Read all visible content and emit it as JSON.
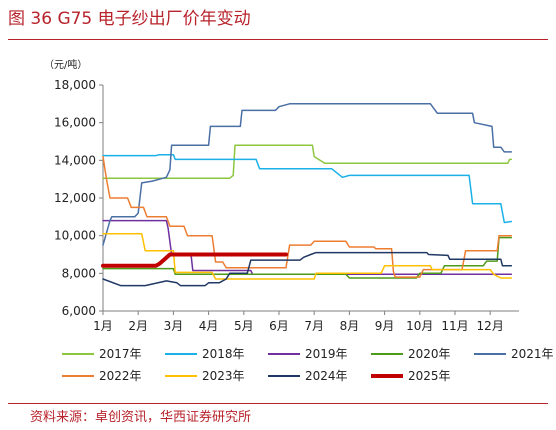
{
  "figure_title": "图 36 G75 电子纱出厂价年变动",
  "source": "资料来源：卓创资讯，华西证券研究所",
  "chart_data": {
    "type": "line",
    "unit_label": "（元/吨）",
    "x_tick_labels": [
      "1月",
      "2月",
      "3月",
      "4月",
      "5月",
      "6月",
      "7月",
      "8月",
      "9月",
      "10月",
      "11月",
      "12月"
    ],
    "x_range": [
      1,
      12.6
    ],
    "ylim": [
      6000,
      18000
    ],
    "y_ticks": [
      6000,
      8000,
      10000,
      12000,
      14000,
      16000,
      18000
    ],
    "y_tick_labels": [
      "6,000",
      "8,000",
      "10,000",
      "12,000",
      "14,000",
      "16,000",
      "18,000"
    ],
    "grid": false,
    "legend_position": "bottom",
    "series": [
      {
        "name": "2017年",
        "color": "#8cc63f",
        "width": 1.5,
        "points": [
          [
            1,
            13050
          ],
          [
            4.6,
            13050
          ],
          [
            4.7,
            13200
          ],
          [
            4.75,
            14800
          ],
          [
            6.95,
            14800
          ],
          [
            7.0,
            14200
          ],
          [
            7.3,
            13850
          ],
          [
            12.5,
            13850
          ],
          [
            12.55,
            14050
          ],
          [
            12.6,
            14050
          ]
        ]
      },
      {
        "name": "2018年",
        "color": "#1ab0e8",
        "width": 1.5,
        "points": [
          [
            1,
            14250
          ],
          [
            2.5,
            14250
          ],
          [
            2.6,
            14300
          ],
          [
            3.0,
            14300
          ],
          [
            3.05,
            14050
          ],
          [
            5.35,
            14050
          ],
          [
            5.45,
            13550
          ],
          [
            7.5,
            13550
          ],
          [
            7.8,
            13100
          ],
          [
            8.0,
            13200
          ],
          [
            11.4,
            13200
          ],
          [
            11.5,
            11700
          ],
          [
            12.3,
            11700
          ],
          [
            12.4,
            10700
          ],
          [
            12.6,
            10750
          ]
        ]
      },
      {
        "name": "2019年",
        "color": "#7030a0",
        "width": 1.5,
        "points": [
          [
            1,
            10800
          ],
          [
            2.8,
            10800
          ],
          [
            2.85,
            10400
          ],
          [
            2.95,
            9000
          ],
          [
            3.5,
            9000
          ],
          [
            3.55,
            8150
          ],
          [
            5.2,
            8150
          ],
          [
            5.25,
            7950
          ],
          [
            12.6,
            7950
          ]
        ]
      },
      {
        "name": "2020年",
        "color": "#4e9a1a",
        "width": 1.5,
        "points": [
          [
            1,
            8250
          ],
          [
            3.0,
            8250
          ],
          [
            3.05,
            7950
          ],
          [
            7.9,
            7950
          ],
          [
            8.0,
            7750
          ],
          [
            9.9,
            7750
          ],
          [
            10.0,
            8000
          ],
          [
            10.6,
            8000
          ],
          [
            10.7,
            8400
          ],
          [
            11.8,
            8400
          ],
          [
            11.9,
            8650
          ],
          [
            12.2,
            8650
          ],
          [
            12.25,
            9900
          ],
          [
            12.6,
            9900
          ]
        ]
      },
      {
        "name": "2021年",
        "color": "#4a6fa5",
        "width": 1.5,
        "points": [
          [
            1,
            9500
          ],
          [
            1.2,
            10800
          ],
          [
            1.25,
            11000
          ],
          [
            1.9,
            11000
          ],
          [
            2.0,
            11200
          ],
          [
            2.1,
            12800
          ],
          [
            2.4,
            12900
          ],
          [
            2.8,
            13100
          ],
          [
            2.9,
            13500
          ],
          [
            2.95,
            14800
          ],
          [
            4.0,
            14800
          ],
          [
            4.05,
            15800
          ],
          [
            4.9,
            15800
          ],
          [
            4.95,
            16650
          ],
          [
            5.9,
            16650
          ],
          [
            6.0,
            16850
          ],
          [
            6.3,
            17000
          ],
          [
            10.3,
            17000
          ],
          [
            10.5,
            16500
          ],
          [
            11.5,
            16500
          ],
          [
            11.55,
            16000
          ],
          [
            12.05,
            15800
          ],
          [
            12.1,
            14700
          ],
          [
            12.3,
            14700
          ],
          [
            12.4,
            14450
          ],
          [
            12.6,
            14450
          ]
        ]
      },
      {
        "name": "2022年",
        "color": "#ed7d31",
        "width": 1.5,
        "points": [
          [
            1,
            14200
          ],
          [
            1.1,
            13000
          ],
          [
            1.2,
            12000
          ],
          [
            1.7,
            12000
          ],
          [
            1.8,
            11500
          ],
          [
            2.15,
            11500
          ],
          [
            2.25,
            11000
          ],
          [
            2.8,
            11000
          ],
          [
            2.9,
            10500
          ],
          [
            3.3,
            10500
          ],
          [
            3.4,
            10000
          ],
          [
            4.1,
            10000
          ],
          [
            4.2,
            8600
          ],
          [
            4.4,
            8600
          ],
          [
            4.5,
            8300
          ],
          [
            6.2,
            8300
          ],
          [
            6.3,
            9500
          ],
          [
            6.9,
            9500
          ],
          [
            7.0,
            9700
          ],
          [
            7.9,
            9700
          ],
          [
            8.0,
            9400
          ],
          [
            8.7,
            9400
          ],
          [
            8.75,
            9300
          ],
          [
            9.2,
            9300
          ],
          [
            9.25,
            8100
          ],
          [
            9.3,
            7800
          ],
          [
            10.0,
            7800
          ],
          [
            10.1,
            8200
          ],
          [
            11.2,
            8200
          ],
          [
            11.3,
            9200
          ],
          [
            12.2,
            9200
          ],
          [
            12.25,
            10000
          ],
          [
            12.6,
            10000
          ]
        ]
      },
      {
        "name": "2023年",
        "color": "#ffc000",
        "width": 1.5,
        "points": [
          [
            1,
            10100
          ],
          [
            2.1,
            10100
          ],
          [
            2.2,
            9200
          ],
          [
            3.0,
            9200
          ],
          [
            3.05,
            8050
          ],
          [
            4.1,
            8050
          ],
          [
            4.2,
            7700
          ],
          [
            7.0,
            7700
          ],
          [
            7.05,
            8000
          ],
          [
            8.9,
            8000
          ],
          [
            9.0,
            8400
          ],
          [
            10.3,
            8400
          ],
          [
            10.35,
            8200
          ],
          [
            12.0,
            8200
          ],
          [
            12.1,
            7950
          ],
          [
            12.3,
            7750
          ],
          [
            12.6,
            7750
          ]
        ]
      },
      {
        "name": "2024年",
        "color": "#1f3864",
        "width": 1.5,
        "points": [
          [
            1,
            7700
          ],
          [
            1.5,
            7350
          ],
          [
            2.2,
            7350
          ],
          [
            2.8,
            7600
          ],
          [
            3.1,
            7500
          ],
          [
            3.2,
            7350
          ],
          [
            3.9,
            7350
          ],
          [
            4.0,
            7500
          ],
          [
            4.3,
            7500
          ],
          [
            4.5,
            7700
          ],
          [
            4.6,
            8000
          ],
          [
            5.1,
            8000
          ],
          [
            5.2,
            8700
          ],
          [
            6.6,
            8700
          ],
          [
            6.7,
            8850
          ],
          [
            6.9,
            9000
          ],
          [
            7.05,
            9100
          ],
          [
            10.2,
            9100
          ],
          [
            10.25,
            9000
          ],
          [
            10.8,
            8950
          ],
          [
            10.85,
            8750
          ],
          [
            12.3,
            8750
          ],
          [
            12.35,
            8400
          ],
          [
            12.6,
            8400
          ]
        ]
      },
      {
        "name": "2025年",
        "color": "#c00000",
        "width": 4,
        "points": [
          [
            1,
            8400
          ],
          [
            2.5,
            8400
          ],
          [
            2.6,
            8500
          ],
          [
            2.75,
            8750
          ],
          [
            2.9,
            9000
          ],
          [
            6.2,
            9000
          ]
        ]
      }
    ]
  }
}
